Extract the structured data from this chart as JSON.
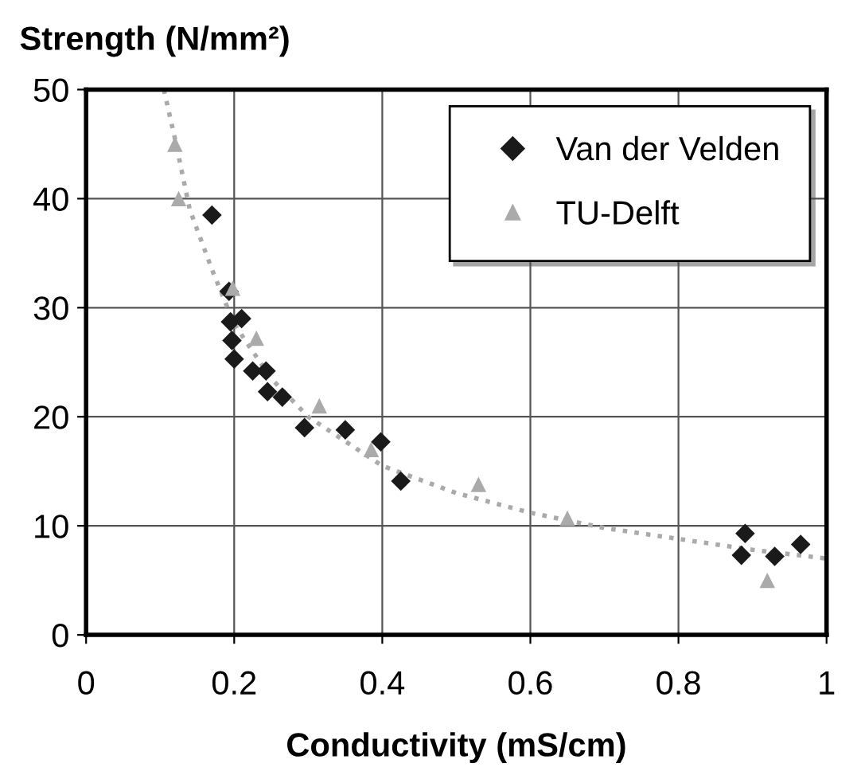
{
  "chart_data": {
    "type": "scatter",
    "xlabel": "Conductivity (mS/cm)",
    "ylabel": "Strength (N/mm²)",
    "xlim": [
      0,
      1
    ],
    "xticks": [
      0,
      0.2,
      0.4,
      0.6,
      0.8,
      1
    ],
    "ylim": [
      0,
      50
    ],
    "yticks": [
      0,
      10,
      20,
      30,
      40,
      50
    ],
    "grid": true,
    "legend": "top right",
    "series": [
      {
        "name": "Van der Velden",
        "color": "#1a1a1a",
        "marker": "diamond",
        "x": [
          0.17,
          0.193,
          0.195,
          0.197,
          0.2,
          0.21,
          0.225,
          0.243,
          0.245,
          0.265,
          0.295,
          0.35,
          0.398,
          0.425,
          0.885,
          0.89,
          0.93,
          0.965
        ],
        "values": [
          38.5,
          31.5,
          28.7,
          27,
          25.3,
          29,
          24.2,
          24.2,
          22.3,
          21.8,
          19,
          18.8,
          17.7,
          14.1,
          7.3,
          9.3,
          7.2,
          8.3
        ]
      },
      {
        "name": "TU-Delft",
        "color": "#aaaaaa",
        "marker": "triangle",
        "x": [
          0.12,
          0.125,
          0.198,
          0.23,
          0.315,
          0.385,
          0.53,
          0.65,
          0.92
        ],
        "values": [
          45,
          40,
          31.8,
          27.2,
          21,
          17,
          13.8,
          10.7,
          5
        ]
      },
      {
        "type": "line",
        "color": "#aaaaaa",
        "line_style": "dotted",
        "marker": "none",
        "x": [
          0.105,
          0.12,
          0.14,
          0.17,
          0.2,
          0.25,
          0.3,
          0.4,
          0.5,
          0.6,
          0.7,
          0.8,
          0.9,
          1.0
        ],
        "values": [
          50,
          45.5,
          39,
          33.5,
          28.5,
          23.5,
          20,
          15.5,
          13,
          11.2,
          9.8,
          8.8,
          7.8,
          7
        ]
      }
    ]
  }
}
